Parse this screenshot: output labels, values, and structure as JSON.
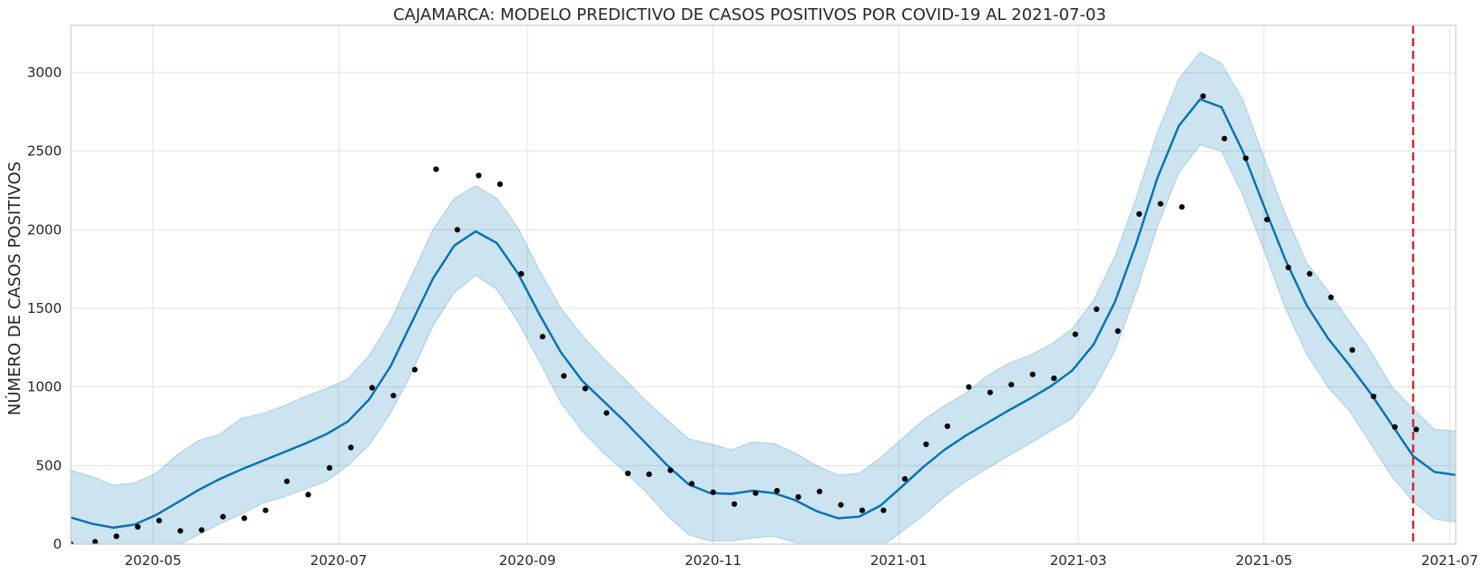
{
  "chart_data": {
    "type": "line",
    "title": "CAJAMARCA: MODELO PREDICTIVO DE CASOS POSITIVOS POR COVID-19 AL 2021-07-03",
    "ylabel": "NÚMERO DE CASOS POSITIVOS",
    "xlabel": "",
    "xlim": [
      "2020-04-04",
      "2021-07-03"
    ],
    "ylim": [
      0,
      3300
    ],
    "grid": true,
    "x_ticks": [
      "2020-05",
      "2020-07",
      "2020-09",
      "2020-11",
      "2021-01",
      "2021-03",
      "2021-05",
      "2021-07"
    ],
    "y_ticks": [
      0,
      500,
      1000,
      1500,
      2000,
      2500,
      3000
    ],
    "cutoff_date": "2021-06-19",
    "colors": {
      "forecast": "#0072b2",
      "interval": "#0072b2",
      "observed": "#000000",
      "cutoff": "#d62728",
      "grid": "#e3e3e3",
      "frame": "#cccccc"
    },
    "forecast": {
      "dates": [
        "2020-04-04",
        "2020-04-11",
        "2020-04-18",
        "2020-04-25",
        "2020-05-02",
        "2020-05-09",
        "2020-05-16",
        "2020-05-23",
        "2020-05-30",
        "2020-06-06",
        "2020-06-13",
        "2020-06-20",
        "2020-06-27",
        "2020-07-04",
        "2020-07-11",
        "2020-07-18",
        "2020-07-25",
        "2020-08-01",
        "2020-08-08",
        "2020-08-15",
        "2020-08-22",
        "2020-08-29",
        "2020-09-05",
        "2020-09-12",
        "2020-09-19",
        "2020-09-26",
        "2020-10-03",
        "2020-10-10",
        "2020-10-17",
        "2020-10-24",
        "2020-10-31",
        "2020-11-07",
        "2020-11-14",
        "2020-11-21",
        "2020-11-28",
        "2020-12-05",
        "2020-12-12",
        "2020-12-19",
        "2020-12-26",
        "2021-01-02",
        "2021-01-09",
        "2021-01-16",
        "2021-01-23",
        "2021-01-30",
        "2021-02-06",
        "2021-02-13",
        "2021-02-20",
        "2021-02-27",
        "2021-03-06",
        "2021-03-13",
        "2021-03-20",
        "2021-03-27",
        "2021-04-03",
        "2021-04-10",
        "2021-04-17",
        "2021-04-24",
        "2021-05-01",
        "2021-05-08",
        "2021-05-15",
        "2021-05-22",
        "2021-05-29",
        "2021-06-05",
        "2021-06-12",
        "2021-06-19",
        "2021-06-26",
        "2021-07-03"
      ],
      "yhat": [
        170,
        130,
        105,
        125,
        185,
        265,
        345,
        415,
        475,
        530,
        585,
        640,
        700,
        780,
        920,
        1130,
        1410,
        1690,
        1900,
        1990,
        1915,
        1720,
        1460,
        1220,
        1040,
        910,
        780,
        640,
        500,
        380,
        325,
        320,
        340,
        325,
        280,
        210,
        165,
        175,
        245,
        365,
        490,
        600,
        690,
        770,
        850,
        925,
        1005,
        1105,
        1270,
        1540,
        1910,
        2330,
        2660,
        2830,
        2780,
        2500,
        2150,
        1810,
        1520,
        1310,
        1140,
        960,
        760,
        560,
        460,
        440
      ],
      "lower": [
        -100,
        -140,
        -180,
        -130,
        -80,
        -10,
        60,
        130,
        190,
        260,
        300,
        350,
        400,
        500,
        630,
        830,
        1090,
        1390,
        1600,
        1710,
        1620,
        1410,
        1160,
        900,
        720,
        580,
        460,
        330,
        180,
        60,
        20,
        20,
        40,
        50,
        10,
        -50,
        -90,
        -80,
        -20,
        80,
        180,
        300,
        400,
        480,
        560,
        640,
        720,
        800,
        980,
        1230,
        1600,
        2020,
        2360,
        2540,
        2500,
        2220,
        1870,
        1500,
        1210,
        1000,
        850,
        640,
        430,
        270,
        160,
        140
      ],
      "upper": [
        470,
        430,
        375,
        390,
        450,
        570,
        660,
        700,
        800,
        830,
        880,
        940,
        990,
        1050,
        1200,
        1420,
        1710,
        2000,
        2200,
        2280,
        2200,
        2010,
        1740,
        1500,
        1330,
        1180,
        1050,
        910,
        790,
        670,
        640,
        600,
        650,
        640,
        580,
        500,
        440,
        450,
        550,
        670,
        790,
        880,
        960,
        1070,
        1150,
        1200,
        1270,
        1370,
        1550,
        1830,
        2200,
        2620,
        2960,
        3130,
        3060,
        2830,
        2460,
        2100,
        1790,
        1610,
        1420,
        1230,
        1000,
        860,
        730,
        720
      ]
    },
    "observed": {
      "dates": [
        "2020-04-04",
        "2020-04-12",
        "2020-04-19",
        "2020-04-26",
        "2020-05-03",
        "2020-05-10",
        "2020-05-17",
        "2020-05-24",
        "2020-05-31",
        "2020-06-07",
        "2020-06-14",
        "2020-06-21",
        "2020-06-28",
        "2020-07-05",
        "2020-07-12",
        "2020-07-19",
        "2020-07-26",
        "2020-08-02",
        "2020-08-09",
        "2020-08-16",
        "2020-08-23",
        "2020-08-30",
        "2020-09-06",
        "2020-09-13",
        "2020-09-20",
        "2020-09-27",
        "2020-10-04",
        "2020-10-11",
        "2020-10-18",
        "2020-10-25",
        "2020-11-01",
        "2020-11-08",
        "2020-11-15",
        "2020-11-22",
        "2020-11-29",
        "2020-12-06",
        "2020-12-13",
        "2020-12-20",
        "2020-12-27",
        "2021-01-03",
        "2021-01-10",
        "2021-01-17",
        "2021-01-24",
        "2021-01-31",
        "2021-02-07",
        "2021-02-14",
        "2021-02-21",
        "2021-02-28",
        "2021-03-07",
        "2021-03-14",
        "2021-03-21",
        "2021-03-28",
        "2021-04-04",
        "2021-04-11",
        "2021-04-18",
        "2021-04-25",
        "2021-05-02",
        "2021-05-09",
        "2021-05-16",
        "2021-05-23",
        "2021-05-30",
        "2021-06-06",
        "2021-06-13",
        "2021-06-20"
      ],
      "values": [
        0,
        15,
        50,
        110,
        150,
        85,
        90,
        175,
        165,
        215,
        400,
        315,
        485,
        615,
        995,
        945,
        1110,
        2385,
        2000,
        2345,
        2290,
        1720,
        1320,
        1070,
        990,
        835,
        450,
        445,
        470,
        385,
        330,
        255,
        325,
        340,
        300,
        335,
        250,
        215,
        215,
        415,
        635,
        750,
        1000,
        965,
        1015,
        1080,
        1055,
        1335,
        1495,
        1355,
        2100,
        2165,
        2145,
        2850,
        2580,
        2455,
        2065,
        1760,
        1720,
        1570,
        1235,
        940,
        745,
        730
      ]
    }
  }
}
